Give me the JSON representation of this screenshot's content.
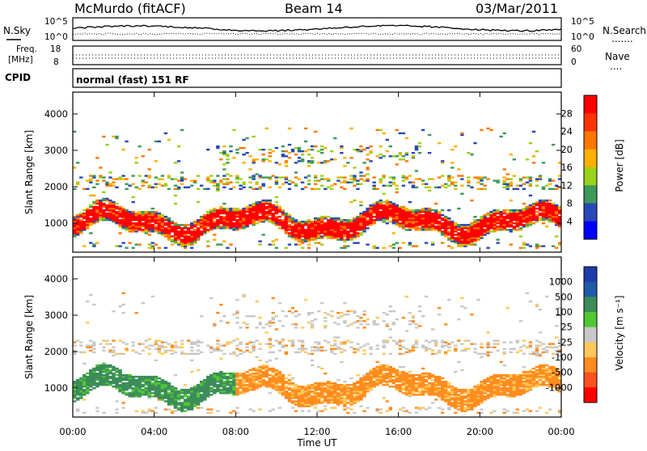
{
  "header": {
    "station": "McMurdo (fitACF)",
    "beam": "Beam 14",
    "date": "03/Mar/2011"
  },
  "noise_panel": {
    "left_label": "N.Sky",
    "right_label": "N.Search",
    "right_symbol": ".......",
    "left_ticks": [
      "10^5",
      "10^0"
    ],
    "right_ticks": [
      "10^5",
      "10^0"
    ]
  },
  "freq_panel": {
    "left_label_top": "Freq.",
    "left_label_bottom": "[MHz]",
    "right_label": "Nave",
    "right_symbol": "....",
    "left_ticks": [
      "18",
      "8"
    ],
    "right_ticks": [
      "60",
      "0"
    ]
  },
  "cpid": {
    "label": "CPID",
    "text": "normal (fast) 151 RF"
  },
  "chart_data": [
    {
      "type": "heatmap",
      "name": "power",
      "ylabel": "Slant Range [km]",
      "yticks": [
        1000,
        2000,
        3000,
        4000
      ],
      "ylim": [
        200,
        4600
      ],
      "xlim": [
        0,
        24
      ],
      "colorbar": {
        "label": "Power [dB]",
        "ticks": [
          "28",
          "24",
          "20",
          "16",
          "12",
          "8",
          "4"
        ],
        "colors": [
          "#ff0000",
          "#ff3300",
          "#ff7700",
          "#ffb000",
          "#9ad21a",
          "#3c9a5a",
          "#2848b8",
          "#0000ff"
        ]
      }
    },
    {
      "type": "heatmap",
      "name": "velocity",
      "ylabel": "Slant Range [km]",
      "yticks": [
        1000,
        2000,
        3000,
        4000
      ],
      "ylim": [
        200,
        4600
      ],
      "xlim": [
        0,
        24
      ],
      "colorbar": {
        "label": "Velocity [m s⁻¹]",
        "ticks": [
          "1000",
          "500",
          "100",
          "25",
          "-25",
          "-100",
          "-500",
          "-1000"
        ],
        "colors": [
          "#1e3caa",
          "#1e5aa8",
          "#3c8c5a",
          "#50c832",
          "#c8c8c8",
          "#ffc85a",
          "#ff8c1e",
          "#ff501e",
          "#ff0000"
        ]
      }
    }
  ],
  "xaxis": {
    "label": "Time UT",
    "ticks": [
      "00:00",
      "04:00",
      "08:00",
      "12:00",
      "16:00",
      "20:00",
      "00:00"
    ]
  }
}
